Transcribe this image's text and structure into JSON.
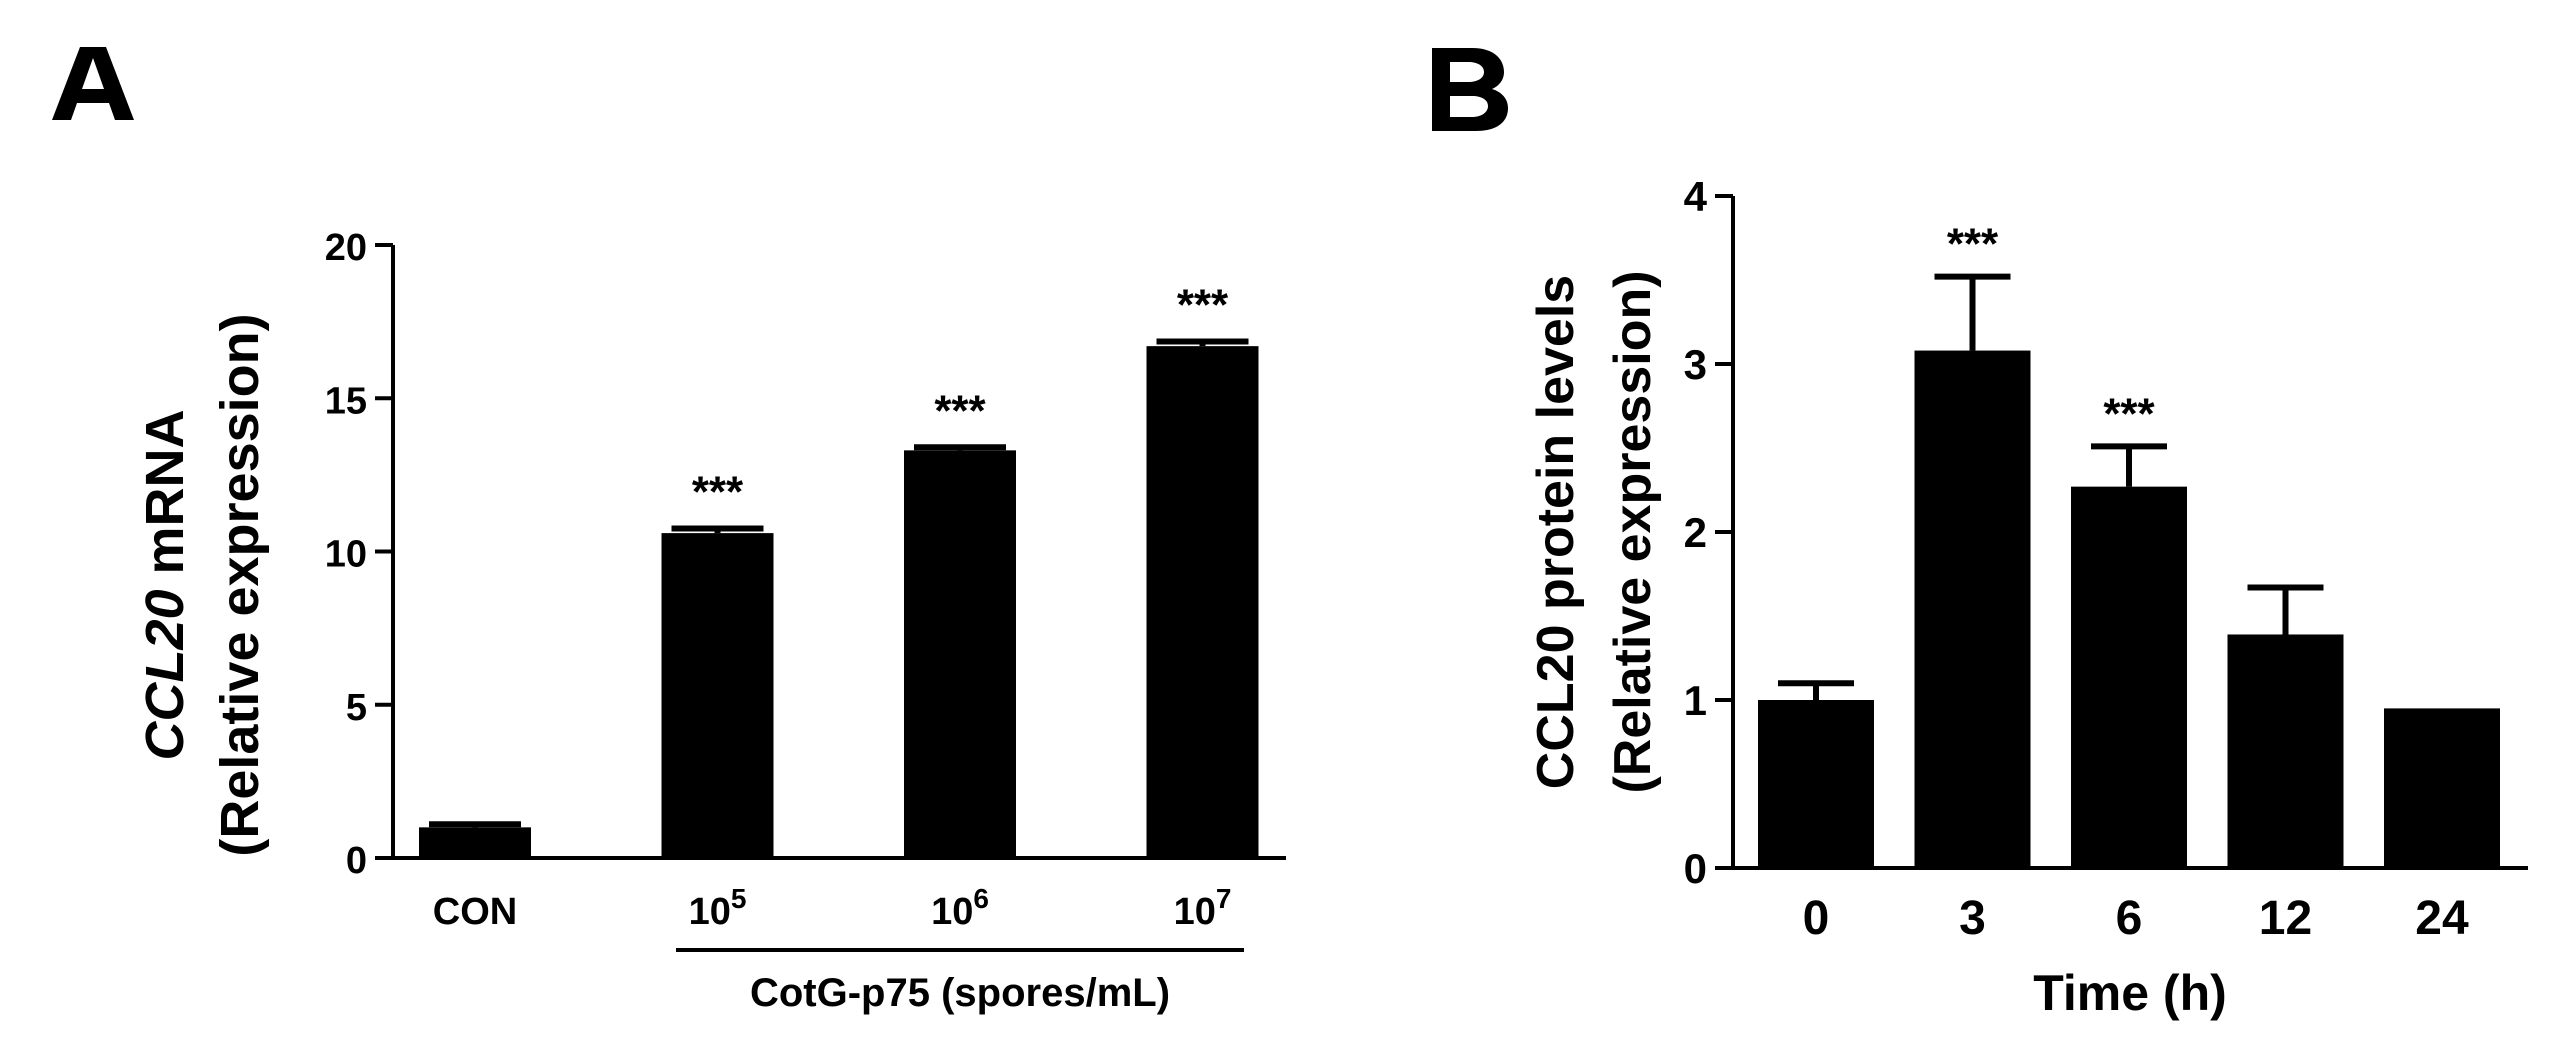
{
  "chart_data": [
    {
      "panel": "A",
      "type": "bar",
      "categories": [
        "CON",
        "10^5",
        "10^6",
        "10^7"
      ],
      "category_labels": [
        {
          "base": "CON",
          "exp": ""
        },
        {
          "base": "10",
          "exp": "5"
        },
        {
          "base": "10",
          "exp": "6"
        },
        {
          "base": "10",
          "exp": "7"
        }
      ],
      "values": [
        1.0,
        10.6,
        13.3,
        16.7
      ],
      "errors": [
        0.1,
        0.15,
        0.1,
        0.15
      ],
      "significance": [
        "",
        "***",
        "***",
        "***"
      ],
      "ylim": [
        0,
        20
      ],
      "yticks": [
        0,
        5,
        10,
        15,
        20
      ],
      "ylabel_line1_italic": "CCL20",
      "ylabel_line1_rest": " mRNA",
      "ylabel_line2": "(Relative expression)",
      "group_label": "CotG-p75 (spores/mL)",
      "xlabel": ""
    },
    {
      "panel": "B",
      "type": "bar",
      "categories": [
        "0",
        "3",
        "6",
        "12",
        "24"
      ],
      "values": [
        1.0,
        3.08,
        2.27,
        1.39,
        0.95
      ],
      "errors": [
        0.1,
        0.44,
        0.24,
        0.28,
        0.0
      ],
      "significance": [
        "",
        "***",
        "***",
        "",
        ""
      ],
      "ylim": [
        0,
        4
      ],
      "yticks": [
        0,
        1,
        2,
        3,
        4
      ],
      "ylabel_line1": "CCL20 protein levels",
      "ylabel_line2": "(Relative expression)",
      "xlabel": "Time (h)"
    }
  ]
}
